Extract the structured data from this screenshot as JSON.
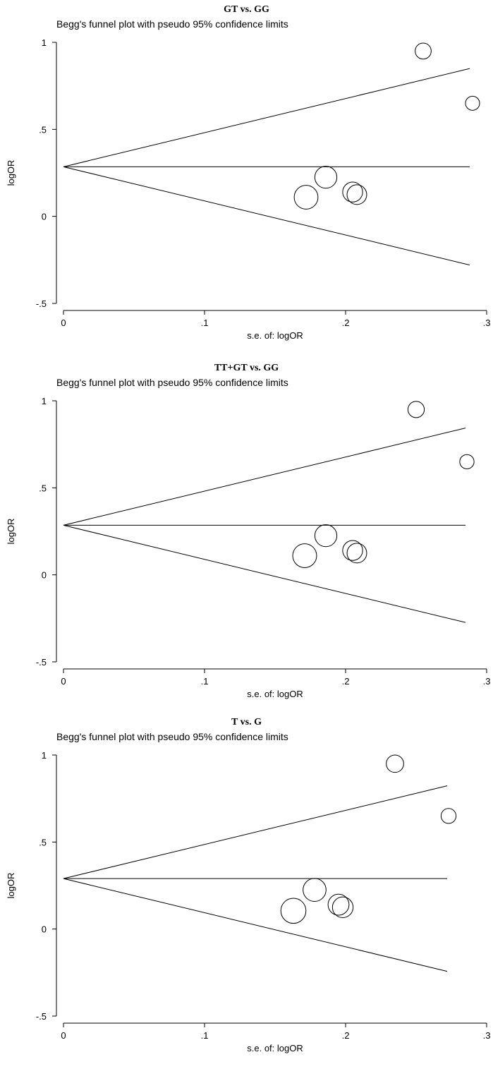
{
  "chart_data": [
    {
      "type": "scatter",
      "title": "GT vs. GG",
      "subtitle": "Begg's funnel plot with pseudo 95% confidence limits",
      "xlabel": "s.e. of: logOR",
      "ylabel": "logOR",
      "xlim": [
        0,
        0.3
      ],
      "ylim": [
        -0.5,
        1
      ],
      "xticks": [
        "0",
        ".1",
        ".2",
        ".3"
      ],
      "yticks": [
        "-.5",
        "0",
        ".5",
        "1"
      ],
      "pooled_logOR": 0.285,
      "funnel_max_se": 0.288,
      "points": [
        {
          "se": 0.172,
          "logOR": 0.11
        },
        {
          "se": 0.186,
          "logOR": 0.225
        },
        {
          "se": 0.205,
          "logOR": 0.14
        },
        {
          "se": 0.208,
          "logOR": 0.125
        },
        {
          "se": 0.255,
          "logOR": 0.95
        },
        {
          "se": 0.29,
          "logOR": 0.65
        }
      ]
    },
    {
      "type": "scatter",
      "title": "TT+GT vs. GG",
      "subtitle": "Begg's funnel plot with pseudo 95% confidence limits",
      "xlabel": "s.e. of: logOR",
      "ylabel": "logOR",
      "xlim": [
        0,
        0.3
      ],
      "ylim": [
        -0.5,
        1
      ],
      "xticks": [
        "0",
        ".1",
        ".2",
        ".3"
      ],
      "yticks": [
        "-.5",
        "0",
        ".5",
        "1"
      ],
      "pooled_logOR": 0.285,
      "funnel_max_se": 0.285,
      "points": [
        {
          "se": 0.171,
          "logOR": 0.11
        },
        {
          "se": 0.186,
          "logOR": 0.225
        },
        {
          "se": 0.205,
          "logOR": 0.14
        },
        {
          "se": 0.208,
          "logOR": 0.125
        },
        {
          "se": 0.25,
          "logOR": 0.95
        },
        {
          "se": 0.286,
          "logOR": 0.65
        }
      ]
    },
    {
      "type": "scatter",
      "title": "T vs. G",
      "subtitle": "Begg's funnel plot with pseudo 95% confidence limits",
      "xlabel": "s.e. of: logOR",
      "ylabel": "logOR",
      "xlim": [
        0,
        0.3
      ],
      "ylim": [
        -0.5,
        1
      ],
      "xticks": [
        "0",
        ".1",
        ".2",
        ".3"
      ],
      "yticks": [
        "-.5",
        "0",
        ".5",
        "1"
      ],
      "pooled_logOR": 0.29,
      "funnel_max_se": 0.272,
      "points": [
        {
          "se": 0.163,
          "logOR": 0.105
        },
        {
          "se": 0.178,
          "logOR": 0.225
        },
        {
          "se": 0.195,
          "logOR": 0.14
        },
        {
          "se": 0.198,
          "logOR": 0.125
        },
        {
          "se": 0.235,
          "logOR": 0.95
        },
        {
          "se": 0.273,
          "logOR": 0.65
        }
      ]
    }
  ]
}
